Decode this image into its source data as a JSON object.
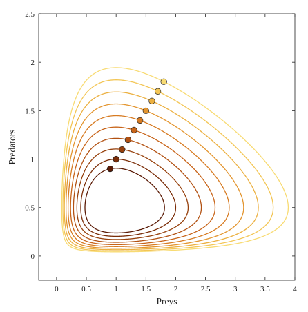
{
  "chart_data": {
    "type": "line",
    "title": "",
    "xlabel": "Preys",
    "ylabel": "Predators",
    "xlim": [
      -0.3,
      4
    ],
    "ylim": [
      -0.25,
      2.5
    ],
    "xticks": [
      "0",
      "0.5",
      "1",
      "1.5",
      "2",
      "2.5",
      "3",
      "3.5",
      "4"
    ],
    "yticks": [
      "0",
      "0.5",
      "1",
      "1.5",
      "2",
      "2.5"
    ],
    "grid": false,
    "legend": "none",
    "model": "Lotka-Volterra",
    "equilibrium": [
      1,
      0.5
    ],
    "series": [
      {
        "initial": [
          0.9,
          0.9
        ],
        "color": "#5a1a05"
      },
      {
        "initial": [
          1.0,
          1.0
        ],
        "color": "#7a2d08"
      },
      {
        "initial": [
          1.1,
          1.1
        ],
        "color": "#96400c"
      },
      {
        "initial": [
          1.2,
          1.2
        ],
        "color": "#b25112"
      },
      {
        "initial": [
          1.3,
          1.3
        ],
        "color": "#c86419"
      },
      {
        "initial": [
          1.4,
          1.4
        ],
        "color": "#d77b22"
      },
      {
        "initial": [
          1.5,
          1.5
        ],
        "color": "#e3952f"
      },
      {
        "initial": [
          1.6,
          1.6
        ],
        "color": "#ecb040"
      },
      {
        "initial": [
          1.7,
          1.7
        ],
        "color": "#f3c656"
      },
      {
        "initial": [
          1.8,
          1.8
        ],
        "color": "#f8db73"
      }
    ]
  }
}
